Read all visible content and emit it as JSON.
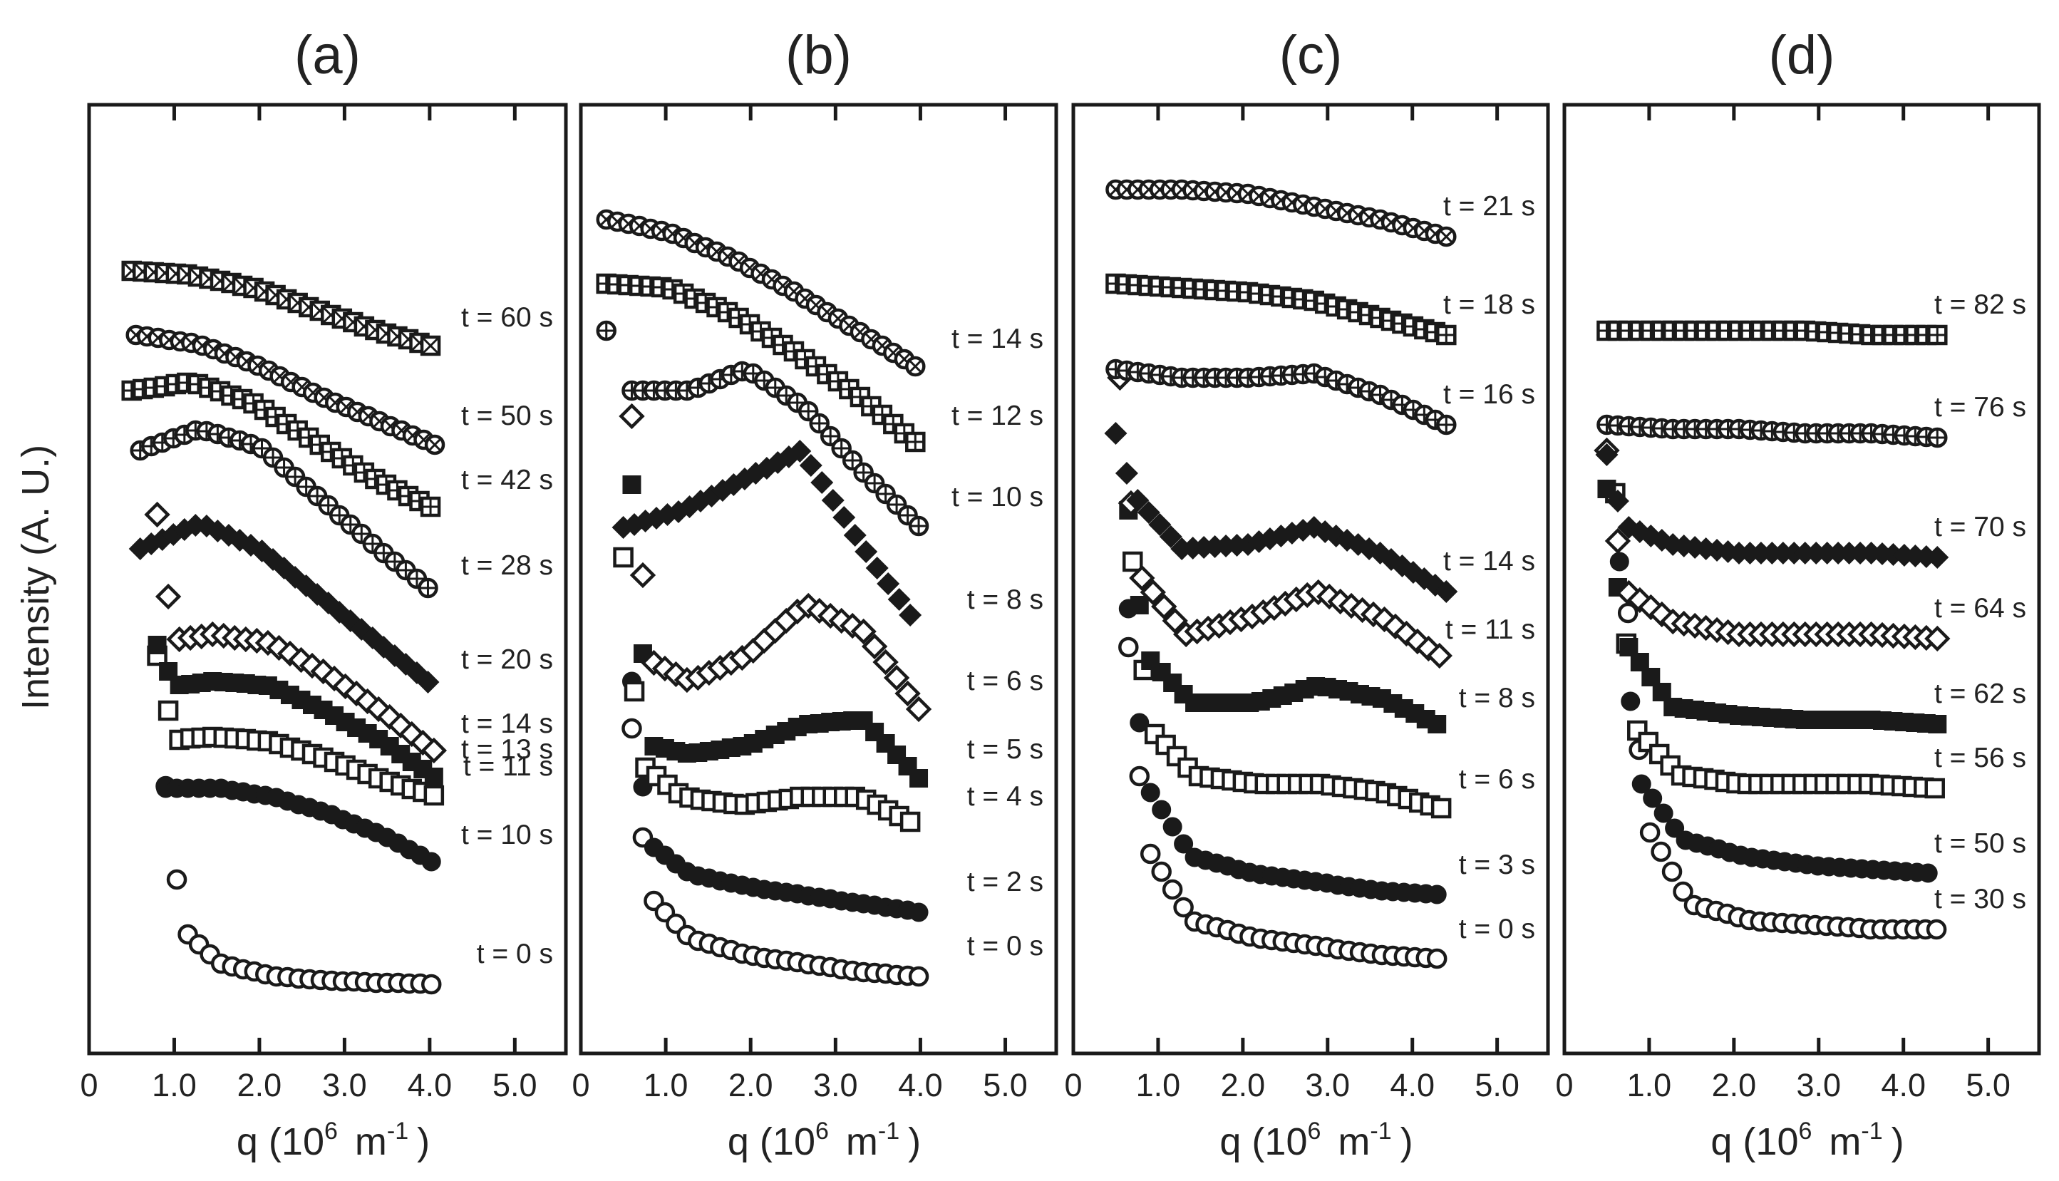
{
  "figure": {
    "ylabel": "Intensity   (A. U.)",
    "xlabel_main": "q   (10",
    "xlabel_exp1": "6",
    "xlabel_unit": "m",
    "xlabel_exp2": "-1",
    "xlabel_close": ")"
  },
  "chart_data": [
    {
      "type": "scatter",
      "title": "(a)",
      "xlim": [
        0,
        5.6
      ],
      "xticks": [
        "0",
        "1.0",
        "2.0",
        "3.0",
        "4.0",
        "5.0"
      ],
      "series": [
        {
          "label": "t =   0 s",
          "marker": "open-circle",
          "curve": {
            "x0": 0.9,
            "x1": 4.1,
            "start": 0.3,
            "y": [
              0.245,
              0.13,
              0.1,
              0.09,
              0.085,
              0.082
            ]
          }
        },
        {
          "label": "t = 10 s",
          "marker": "filled-circle",
          "curve": {
            "x0": 0.9,
            "x1": 4.1,
            "start": 0.0,
            "y": [
              0.54,
              0.54,
              0.52,
              0.48,
              0.43,
              0.36
            ]
          }
        },
        {
          "label": "t = 11 s",
          "marker": "open-square",
          "curve": {
            "x0": 0.8,
            "x1": 4.1,
            "start": 0.2,
            "y": [
              0.65,
              0.66,
              0.65,
              0.61,
              0.56,
              0.52
            ]
          }
        },
        {
          "label": "t = 13 s",
          "marker": "filled-square",
          "curve": {
            "x0": 0.8,
            "x1": 4.1,
            "start": 0.1,
            "y": [
              0.775,
              0.79,
              0.78,
              0.72,
              0.65,
              0.56
            ]
          }
        },
        {
          "label": "t = 14 s",
          "marker": "open-diamond",
          "curve": {
            "x0": 0.8,
            "x1": 4.1,
            "start": 0.3,
            "y": [
              0.88,
              0.9,
              0.88,
              0.81,
              0.72,
              0.62
            ]
          }
        },
        {
          "label": "t = 20 s",
          "marker": "filled-diamond",
          "curve": {
            "x0": 0.6,
            "x1": 4.1,
            "start": 0.0,
            "y": [
              1.1,
              1.16,
              1.1,
              0.99,
              0.88,
              0.77
            ]
          }
        },
        {
          "label": "t = 28 s",
          "marker": "circle-plus",
          "curve": {
            "x0": 0.6,
            "x1": 4.1,
            "start": 0.0,
            "y": [
              1.33,
              1.38,
              1.34,
              1.22,
              1.1,
              0.99
            ]
          }
        },
        {
          "label": "t = 42 s",
          "marker": "square-plus",
          "curve": {
            "x0": 0.5,
            "x1": 4.1,
            "start": 0.0,
            "y": [
              1.47,
              1.49,
              1.44,
              1.35,
              1.26,
              1.19
            ]
          }
        },
        {
          "label": "t = 50 s",
          "marker": "circle-cross",
          "curve": {
            "x0": 0.55,
            "x1": 4.1,
            "start": 0.0,
            "y": [
              1.6,
              1.58,
              1.53,
              1.46,
              1.4,
              1.34
            ]
          }
        },
        {
          "label": "t = 60 s",
          "marker": "square-cross",
          "curve": {
            "x0": 0.5,
            "x1": 4.1,
            "start": 0.0,
            "y": [
              1.75,
              1.74,
              1.71,
              1.66,
              1.61,
              1.57
            ]
          }
        }
      ]
    },
    {
      "type": "scatter",
      "title": "(b)",
      "xlim": [
        0,
        5.6
      ],
      "xticks": [
        "0",
        "1.0",
        "2.0",
        "3.0",
        "4.0",
        "5.0"
      ],
      "series": [
        {
          "label": "t =   0 s",
          "marker": "open-circle",
          "curve": {
            "x0": 0.6,
            "x1": 4.0,
            "start": 0.35,
            "y": [
              0.33,
              0.19,
              0.15,
              0.13,
              0.11,
              0.1
            ]
          }
        },
        {
          "label": "t =   2 s",
          "marker": "filled-circle",
          "curve": {
            "x0": 0.6,
            "x1": 4.0,
            "start": 0.35,
            "y": [
              0.44,
              0.34,
              0.31,
              0.29,
              0.27,
              0.25
            ]
          }
        },
        {
          "label": "t =   4 s",
          "marker": "open-square",
          "curve": {
            "x0": 0.5,
            "x1": 4.0,
            "start": 0.45,
            "y": [
              0.63,
              0.52,
              0.5,
              0.52,
              0.52,
              0.45
            ]
          }
        },
        {
          "label": "t =   5 s",
          "marker": "filled-square",
          "curve": {
            "x0": 0.6,
            "x1": 4.0,
            "start": 0.6,
            "y": [
              0.65,
              0.62,
              0.64,
              0.69,
              0.7,
              0.56
            ]
          }
        },
        {
          "label": "t =   6 s",
          "marker": "open-diamond",
          "curve": {
            "x0": 0.6,
            "x1": 4.0,
            "start": 0.55,
            "y": [
              0.86,
              0.79,
              0.85,
              0.97,
              0.91,
              0.72
            ]
          }
        },
        {
          "label": "t =   8 s",
          "marker": "filled-diamond",
          "curve": {
            "x0": 0.5,
            "x1": 4.0,
            "start": 0.0,
            "y": [
              1.15,
              1.19,
              1.26,
              1.33,
              1.11,
              0.91
            ]
          }
        },
        {
          "label": "t = 10 s",
          "marker": "circle-plus",
          "curve": {
            "x0": 0.6,
            "x1": 4.0,
            "start": 0.0,
            "y": [
              1.47,
              1.47,
              1.52,
              1.43,
              1.28,
              1.15
            ]
          }
        },
        {
          "label": "t = 12 s",
          "marker": "square-plus",
          "curve": {
            "x0": 0.3,
            "x1": 4.0,
            "start": 0.0,
            "y": [
              1.72,
              1.71,
              1.65,
              1.56,
              1.46,
              1.34
            ]
          }
        },
        {
          "label": "t = 14 s",
          "marker": "circle-cross",
          "curve": {
            "x0": 0.3,
            "x1": 4.0,
            "start": 0.0,
            "y": [
              1.87,
              1.84,
              1.78,
              1.7,
              1.61,
              1.52
            ]
          }
        }
      ],
      "extra_points": [
        {
          "marker": "circle-plus",
          "x": 0.3,
          "y": 1.61
        }
      ]
    },
    {
      "type": "scatter",
      "title": "(c)",
      "xlim": [
        0,
        5.6
      ],
      "xticks": [
        "0",
        "1.0",
        "2.0",
        "3.0",
        "4.0",
        "5.0"
      ],
      "series": [
        {
          "label": "t =   0 s",
          "marker": "open-circle",
          "curve": {
            "x0": 0.65,
            "x1": 4.4,
            "start": 0.4,
            "y": [
              0.47,
              0.23,
              0.19,
              0.17,
              0.15,
              0.14
            ]
          }
        },
        {
          "label": "t =   3 s",
          "marker": "filled-circle",
          "curve": {
            "x0": 0.65,
            "x1": 4.4,
            "start": 0.35,
            "y": [
              0.61,
              0.38,
              0.34,
              0.32,
              0.3,
              0.29
            ]
          }
        },
        {
          "label": "t =   6 s",
          "marker": "open-square",
          "curve": {
            "x0": 0.7,
            "x1": 4.4,
            "start": 0.35,
            "y": [
              0.72,
              0.57,
              0.55,
              0.55,
              0.53,
              0.49
            ]
          }
        },
        {
          "label": "t =   8 s",
          "marker": "filled-square",
          "curve": {
            "x0": 0.65,
            "x1": 4.4,
            "start": 0.3,
            "y": [
              0.89,
              0.74,
              0.74,
              0.78,
              0.75,
              0.68
            ]
          }
        },
        {
          "label": "t = 11 s",
          "marker": "open-diamond",
          "curve": {
            "x0": 0.55,
            "x1": 4.4,
            "start": 0.4,
            "y": [
              1.1,
              0.9,
              0.94,
              1.0,
              0.94,
              0.84
            ]
          }
        },
        {
          "label": "t = 14 s",
          "marker": "filled-diamond",
          "curve": {
            "x0": 0.5,
            "x1": 4.4,
            "start": 0.1,
            "y": [
              1.27,
              1.1,
              1.11,
              1.15,
              1.09,
              1.0
            ]
          }
        },
        {
          "label": "t = 16 s",
          "marker": "circle-plus",
          "curve": {
            "x0": 0.5,
            "x1": 4.4,
            "start": 0.0,
            "y": [
              1.52,
              1.5,
              1.5,
              1.51,
              1.46,
              1.39
            ]
          }
        },
        {
          "label": "t = 18 s",
          "marker": "square-plus",
          "curve": {
            "x0": 0.5,
            "x1": 4.4,
            "start": 0.0,
            "y": [
              1.72,
              1.71,
              1.7,
              1.68,
              1.64,
              1.6
            ]
          }
        },
        {
          "label": "t = 21 s",
          "marker": "circle-cross",
          "curve": {
            "x0": 0.5,
            "x1": 4.4,
            "start": 0.0,
            "y": [
              1.94,
              1.94,
              1.93,
              1.9,
              1.87,
              1.83
            ]
          }
        }
      ]
    },
    {
      "type": "scatter",
      "title": "(d)",
      "xlim": [
        0,
        5.6
      ],
      "xticks": [
        "0",
        "1.0",
        "2.0",
        "3.0",
        "4.0",
        "5.0"
      ],
      "series": [
        {
          "label": "t = 30 s",
          "marker": "open-circle",
          "curve": {
            "x0": 0.75,
            "x1": 4.4,
            "start": 0.42,
            "y": [
              0.53,
              0.27,
              0.23,
              0.22,
              0.21,
              0.21
            ]
          }
        },
        {
          "label": "t = 50 s",
          "marker": "filled-circle",
          "curve": {
            "x0": 0.65,
            "x1": 4.4,
            "start": 0.45,
            "y": [
              0.62,
              0.42,
              0.38,
              0.36,
              0.35,
              0.34
            ]
          }
        },
        {
          "label": "t = 56 s",
          "marker": "open-square",
          "curve": {
            "x0": 0.6,
            "x1": 4.4,
            "start": 0.5,
            "y": [
              0.73,
              0.57,
              0.55,
              0.55,
              0.55,
              0.54
            ]
          }
        },
        {
          "label": "t = 62 s",
          "marker": "filled-square",
          "curve": {
            "x0": 0.5,
            "x1": 4.4,
            "start": 0.3,
            "y": [
              0.94,
              0.73,
              0.71,
              0.7,
              0.7,
              0.69
            ]
          }
        },
        {
          "label": "t = 64 s",
          "marker": "open-diamond",
          "curve": {
            "x0": 0.5,
            "x1": 4.4,
            "start": 0.3,
            "y": [
              1.03,
              0.93,
              0.9,
              0.9,
              0.9,
              0.89
            ]
          }
        },
        {
          "label": "t = 70 s",
          "marker": "filled-diamond",
          "curve": {
            "x0": 0.5,
            "x1": 4.4,
            "start": 0.15,
            "y": [
              1.17,
              1.11,
              1.09,
              1.09,
              1.09,
              1.08
            ]
          }
        },
        {
          "label": "t = 76 s",
          "marker": "circle-plus",
          "curve": {
            "x0": 0.5,
            "x1": 4.4,
            "start": 0.0,
            "y": [
              1.39,
              1.38,
              1.38,
              1.37,
              1.37,
              1.36
            ]
          }
        },
        {
          "label": "t = 82 s",
          "marker": "square-plus",
          "curve": {
            "x0": 0.5,
            "x1": 4.4,
            "start": 0.0,
            "y": [
              1.61,
              1.61,
              1.61,
              1.61,
              1.6,
              1.6
            ]
          }
        }
      ]
    }
  ]
}
